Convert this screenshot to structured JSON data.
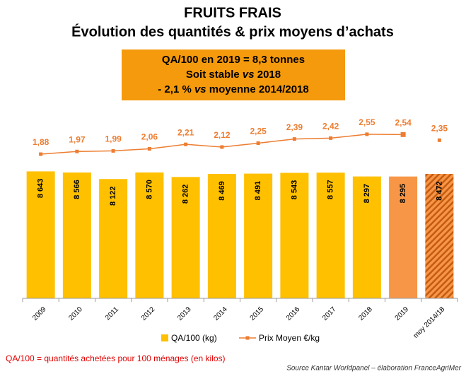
{
  "chart_data": {
    "type": "bar_line",
    "title": "FRUITS FRAIS",
    "subtitle": "Évolution des quantités & prix moyens d’achats",
    "box_lines": [
      [
        "QA/100 en 2019 = 8,3 tonnes"
      ],
      [
        "Soit stable ",
        "vs",
        " 2018"
      ],
      [
        "- 2,1 % ",
        "vs",
        " moyenne 2014/2018"
      ]
    ],
    "categories": [
      "2009",
      "2010",
      "2011",
      "2012",
      "2013",
      "2014",
      "2015",
      "2016",
      "2017",
      "2018",
      "2019",
      "moy 2014/18"
    ],
    "series": [
      {
        "name": "QA/100 (kg)",
        "color": "#ffc000",
        "colors": [
          "#ffc000",
          "#ffc000",
          "#ffc000",
          "#ffc000",
          "#ffc000",
          "#ffc000",
          "#ffc000",
          "#ffc000",
          "#ffc000",
          "#ffc000",
          "#f79646",
          "#f79646"
        ],
        "hatched": [
          false,
          false,
          false,
          false,
          false,
          false,
          false,
          false,
          false,
          false,
          false,
          true
        ],
        "values": [
          8643,
          8566,
          8122,
          8570,
          8262,
          8469,
          8491,
          8543,
          8557,
          8297,
          8295,
          8472
        ],
        "value_labels": [
          "8 643",
          "8 566",
          "8 122",
          "8 570",
          "8 262",
          "8 469",
          "8 491",
          "8 543",
          "8 557",
          "8 297",
          "8 295",
          "8 472"
        ]
      },
      {
        "name": "Prix Moyen €/kg",
        "color": "#ed7d31",
        "axis": "y2",
        "values": [
          1.88,
          1.97,
          1.99,
          2.06,
          2.21,
          2.12,
          2.25,
          2.39,
          2.42,
          2.55,
          2.54,
          2.35
        ],
        "value_labels": [
          "1,88",
          "1,97",
          "1,99",
          "2,06",
          "2,21",
          "2,12",
          "2,25",
          "2,39",
          "2,42",
          "2,55",
          "2,54",
          "2,35"
        ]
      }
    ],
    "ylim": [
      0,
      9000
    ],
    "y2lim": [
      1,
      3
    ],
    "footnote": "QA/100 = quantités achetées pour 100 ménages (en kilos)",
    "source": "Source Kantar Worldpanel – élaboration FranceAgriMer"
  }
}
